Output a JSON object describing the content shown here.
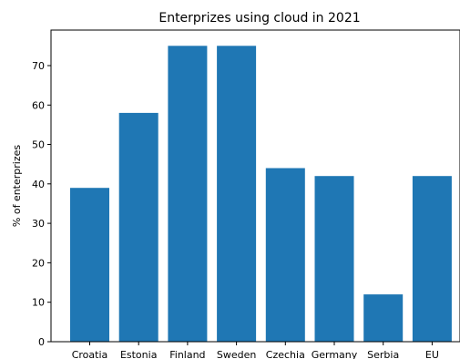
{
  "chart_data": {
    "type": "bar",
    "title": "Enterprizes using cloud in 2021",
    "xlabel": "",
    "ylabel": "% of enterprizes",
    "categories": [
      "Croatia",
      "Estonia",
      "Finland",
      "Sweden",
      "Czechia",
      "Germany",
      "Serbia",
      "EU"
    ],
    "values": [
      39,
      58,
      75,
      75,
      44,
      42,
      12,
      42
    ],
    "ylim": [
      0,
      79
    ],
    "yticks": [
      0,
      10,
      20,
      30,
      40,
      50,
      60,
      70
    ],
    "grid": false,
    "legend": "none",
    "bar_color": "#1f77b4"
  }
}
